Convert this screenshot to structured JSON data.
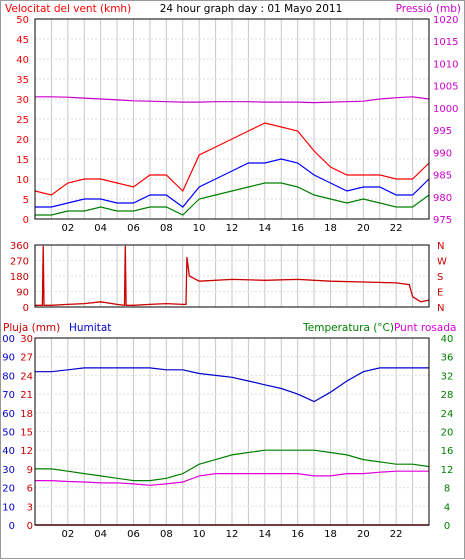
{
  "page": {
    "title": "24 hour graph day : 01 Mayo 2011"
  },
  "colors": {
    "wind_gust": "#ff0000",
    "wind_avg": "#0000ff",
    "wind_min": "#008000",
    "pressure": "#cc00cc",
    "direction": "#cc0000",
    "humidity": "#0000cc",
    "temperature": "#008000",
    "dewpoint": "#dd00dd",
    "rain": "#cc0000",
    "grid": "#c8c8c8",
    "frame": "#000000",
    "background": "#ffffff"
  },
  "panels": {
    "wind": {
      "left_label": "Velocitat del vent (kmh)",
      "right_label": "Pressió (mb)"
    },
    "direction": {
      "right_labels": [
        "N",
        "W",
        "S",
        "E",
        "N"
      ]
    },
    "lower": {
      "rain_label": "Pluja (mm)",
      "humidity_label": "Humitat",
      "temperature_label": "Temperatura (°C)",
      "dewpoint_label": "Punt rosada"
    }
  },
  "chart_data": [
    {
      "type": "line",
      "name": "wind",
      "xlim": [
        0,
        24
      ],
      "x_ticks": [
        "02",
        "04",
        "06",
        "08",
        "10",
        "12",
        "14",
        "16",
        "18",
        "20",
        "22"
      ],
      "ylim": [
        0,
        50
      ],
      "y_ticks": [
        "0",
        "5",
        "10",
        "15",
        "20",
        "25",
        "30",
        "35",
        "40",
        "45",
        "50"
      ],
      "y2lim": [
        975,
        1020
      ],
      "y2_ticks": [
        "975",
        "980",
        "985",
        "990",
        "995",
        "1000",
        "1005",
        "1010",
        "1015",
        "1020"
      ],
      "x": [
        0,
        1,
        2,
        3,
        4,
        5,
        6,
        7,
        8,
        9,
        10,
        11,
        12,
        13,
        14,
        15,
        16,
        17,
        18,
        19,
        20,
        21,
        22,
        23,
        24
      ],
      "series": [
        {
          "name": "gust",
          "axis": "left",
          "values": [
            7,
            6,
            9,
            10,
            10,
            9,
            8,
            11,
            11,
            7,
            16,
            18,
            20,
            22,
            24,
            23,
            22,
            17,
            13,
            11,
            11,
            11,
            10,
            10,
            14
          ]
        },
        {
          "name": "average",
          "axis": "left",
          "values": [
            3,
            3,
            4,
            5,
            5,
            4,
            4,
            6,
            6,
            3,
            8,
            10,
            12,
            14,
            14,
            15,
            14,
            11,
            9,
            7,
            8,
            8,
            6,
            6,
            10
          ]
        },
        {
          "name": "minimum",
          "axis": "left",
          "values": [
            1,
            1,
            2,
            2,
            3,
            2,
            2,
            3,
            3,
            1,
            5,
            6,
            7,
            8,
            9,
            9,
            8,
            6,
            5,
            4,
            5,
            4,
            3,
            3,
            6
          ]
        },
        {
          "name": "pressure",
          "axis": "right",
          "values": [
            1002.5,
            1002.5,
            1002.4,
            1002.2,
            1002,
            1001.8,
            1001.6,
            1001.5,
            1001.4,
            1001.3,
            1001.3,
            1001.4,
            1001.4,
            1001.4,
            1001.3,
            1001.3,
            1001.3,
            1001.2,
            1001.3,
            1001.4,
            1001.5,
            1002,
            1002.3,
            1002.5,
            1002
          ]
        }
      ]
    },
    {
      "type": "line",
      "name": "wind_direction",
      "xlim": [
        0,
        24
      ],
      "ylim": [
        0,
        360
      ],
      "y_ticks": [
        "0",
        "90",
        "180",
        "270",
        "360"
      ],
      "x": [
        0,
        0.3,
        0.45,
        0.5,
        0.55,
        1,
        2,
        3,
        4,
        5,
        5.45,
        5.5,
        5.55,
        6,
        7,
        8,
        9,
        9.2,
        9.25,
        9.4,
        10,
        12,
        14,
        16,
        18,
        20,
        22,
        22.8,
        23,
        23.5,
        24
      ],
      "series": [
        {
          "name": "direction",
          "values": [
            10,
            10,
            10,
            355,
            10,
            10,
            15,
            20,
            30,
            15,
            10,
            355,
            10,
            10,
            15,
            20,
            15,
            15,
            290,
            180,
            150,
            160,
            155,
            160,
            150,
            145,
            140,
            130,
            60,
            30,
            40
          ]
        }
      ]
    },
    {
      "type": "line",
      "name": "humidity_temperature",
      "xlim": [
        0,
        24
      ],
      "x_ticks": [
        "02",
        "04",
        "06",
        "08",
        "10",
        "12",
        "14",
        "16",
        "18",
        "20",
        "22"
      ],
      "rain_ticks": [
        "0",
        "3",
        "6",
        "9",
        "12",
        "15",
        "18",
        "21",
        "24",
        "27",
        "30"
      ],
      "humidity_ticks": [
        "0",
        "10",
        "20",
        "30",
        "40",
        "50",
        "60",
        "70",
        "80",
        "90",
        "100"
      ],
      "temperature_ticks": [
        "0",
        "4",
        "8",
        "12",
        "16",
        "20",
        "24",
        "28",
        "32",
        "36",
        "40"
      ],
      "ylim_rain": [
        0,
        30
      ],
      "ylim_humidity": [
        0,
        100
      ],
      "ylim_temperature": [
        0,
        40
      ],
      "x": [
        0,
        1,
        2,
        3,
        4,
        5,
        6,
        7,
        8,
        9,
        10,
        11,
        12,
        13,
        14,
        15,
        16,
        17,
        18,
        19,
        20,
        21,
        22,
        23,
        24
      ],
      "series": [
        {
          "name": "Humitat",
          "axis": "humidity",
          "values": [
            82,
            82,
            83,
            84,
            84,
            84,
            84,
            84,
            83,
            83,
            81,
            80,
            79,
            77,
            75,
            73,
            70,
            66,
            71,
            77,
            82,
            84,
            84,
            84,
            84
          ]
        },
        {
          "name": "Temperatura",
          "axis": "temperature",
          "values": [
            12,
            12,
            11.5,
            11,
            10.5,
            10,
            9.5,
            9.5,
            10,
            11,
            13,
            14,
            15,
            15.5,
            16,
            16,
            16,
            16,
            15.5,
            15,
            14,
            13.5,
            13,
            13,
            12.5
          ]
        },
        {
          "name": "Punt rosada",
          "axis": "temperature",
          "values": [
            9.5,
            9.5,
            9.3,
            9.2,
            9,
            9,
            8.8,
            8.5,
            8.8,
            9.2,
            10.5,
            11,
            11,
            11,
            11,
            11,
            11,
            10.5,
            10.5,
            11,
            11,
            11.3,
            11.5,
            11.5,
            11.5
          ]
        },
        {
          "name": "Pluja",
          "axis": "rain",
          "values": [
            0,
            0,
            0,
            0,
            0,
            0,
            0,
            0,
            0,
            0,
            0,
            0,
            0,
            0,
            0,
            0,
            0,
            0,
            0,
            0,
            0,
            0,
            0,
            0,
            0
          ]
        }
      ]
    }
  ]
}
